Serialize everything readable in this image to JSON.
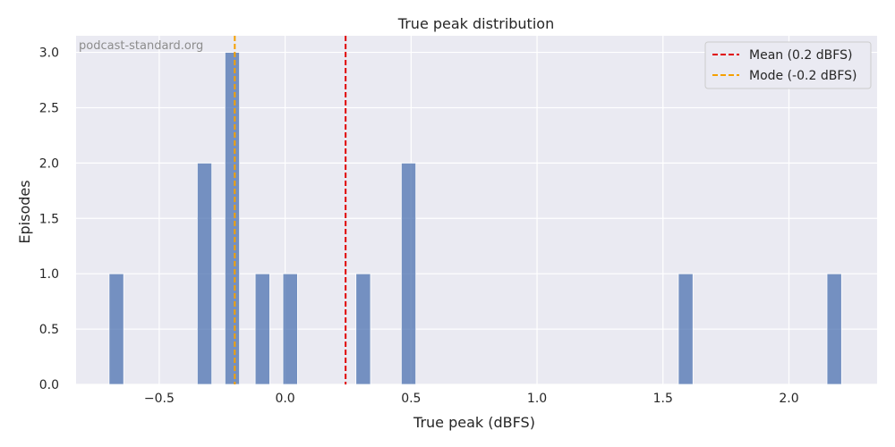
{
  "chart_data": {
    "type": "bar",
    "title": "True peak distribution",
    "xlabel": "True peak (dBFS)",
    "ylabel": "Episodes",
    "watermark": "podcast-standard.org",
    "xlim": [
      -0.83,
      2.35
    ],
    "ylim": [
      0,
      3.15
    ],
    "bin_width": 0.058,
    "x_ticks": [
      -0.5,
      0.0,
      0.5,
      1.0,
      1.5,
      2.0
    ],
    "x_tick_labels": [
      "−0.5",
      "0.0",
      "0.5",
      "1.0",
      "1.5",
      "2.0"
    ],
    "y_ticks": [
      0.0,
      0.5,
      1.0,
      1.5,
      2.0,
      2.5,
      3.0
    ],
    "y_tick_labels": [
      "0.0",
      "0.5",
      "1.0",
      "1.5",
      "2.0",
      "2.5",
      "3.0"
    ],
    "grid": true,
    "bars": [
      {
        "x": -0.67,
        "value": 1
      },
      {
        "x": -0.32,
        "value": 2
      },
      {
        "x": -0.21,
        "value": 3
      },
      {
        "x": -0.09,
        "value": 1
      },
      {
        "x": 0.02,
        "value": 1
      },
      {
        "x": 0.31,
        "value": 1
      },
      {
        "x": 0.49,
        "value": 2
      },
      {
        "x": 1.59,
        "value": 1
      },
      {
        "x": 2.18,
        "value": 1
      }
    ],
    "bar_color": "#4c72b0",
    "reference_lines": [
      {
        "name": "Mean (0.2 dBFS)",
        "x": 0.24,
        "color": "#e00000"
      },
      {
        "name": "Mode (-0.2 dBFS)",
        "x": -0.2,
        "color": "#f5a000"
      }
    ],
    "legend_position": "top-right"
  }
}
